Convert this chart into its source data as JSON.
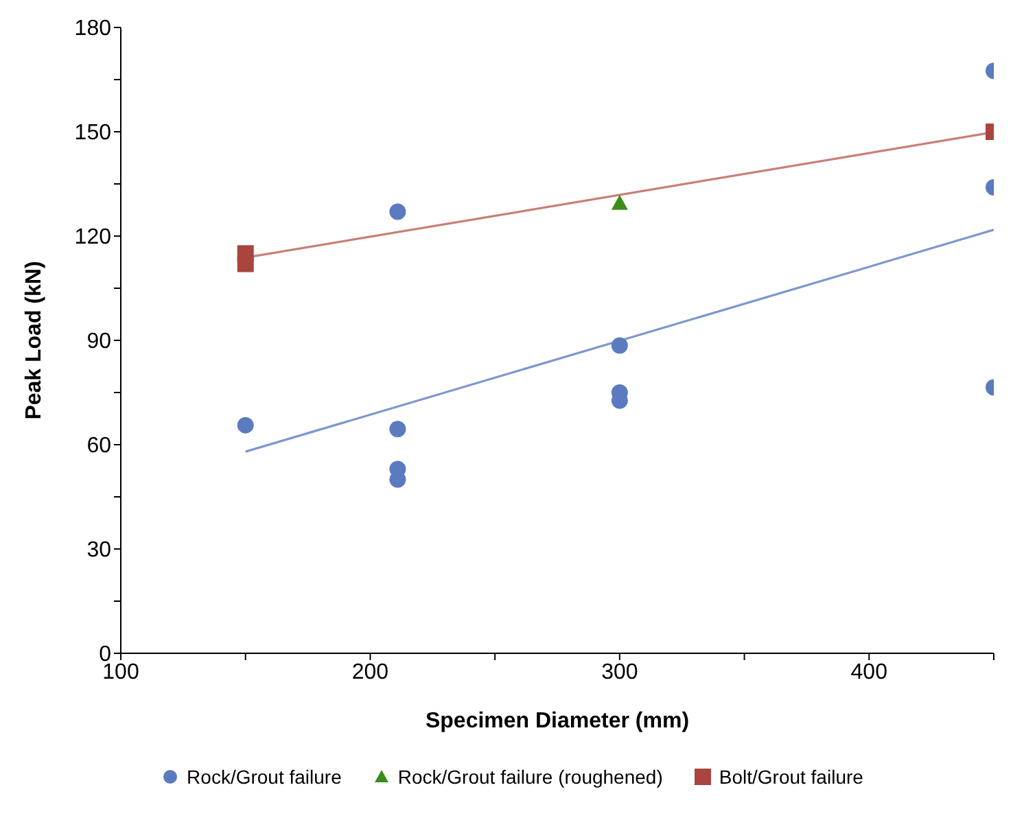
{
  "chart_data": {
    "type": "scatter",
    "xlabel": "Specimen Diameter (mm)",
    "ylabel": "Peak Load (kN)",
    "xlim": [
      100,
      450
    ],
    "xticks": [
      100,
      {
        "value": 150,
        "label": null
      },
      200,
      {
        "value": 250,
        "label": null
      },
      300,
      {
        "value": 350,
        "label": null
      },
      400,
      {
        "value": 450,
        "label": null
      }
    ],
    "ylim": [
      0,
      180
    ],
    "yticks": [
      0,
      {
        "value": 15,
        "label": null
      },
      30,
      {
        "value": 45,
        "label": null
      },
      60,
      {
        "value": 75,
        "label": null
      },
      90,
      {
        "value": 105,
        "label": null
      },
      120,
      {
        "value": 135,
        "label": null
      },
      150,
      {
        "value": 165,
        "label": null
      },
      180
    ],
    "legend": "bottom",
    "series": [
      {
        "name": "Rock/Grout failure",
        "color": "#5b7bc0",
        "marker": "circle",
        "x": [
          150,
          211,
          211,
          211,
          211,
          300,
          300,
          300,
          450,
          450,
          450
        ],
        "values": [
          65.6,
          127,
          64.5,
          53,
          50,
          88.5,
          75,
          72.7,
          167.5,
          134,
          76.5
        ]
      },
      {
        "name": "Rock/Grout failure (roughened)",
        "color": "#3c8c1a",
        "marker": "triangle",
        "x": [
          300
        ],
        "values": [
          129.5
        ]
      },
      {
        "name": "Bolt/Grout failure",
        "color": "#a9443f",
        "marker": "square",
        "x": [
          150,
          150,
          450
        ],
        "values": [
          115,
          112,
          150
        ]
      },
      {
        "type": "line",
        "color": "#7f96cf",
        "marker": "none",
        "x": [
          150,
          450
        ],
        "values": [
          58,
          121.8
        ]
      },
      {
        "type": "line",
        "color": "#c87f77",
        "marker": "none",
        "x": [
          150,
          450
        ],
        "values": [
          113.8,
          149.9
        ]
      }
    ]
  }
}
